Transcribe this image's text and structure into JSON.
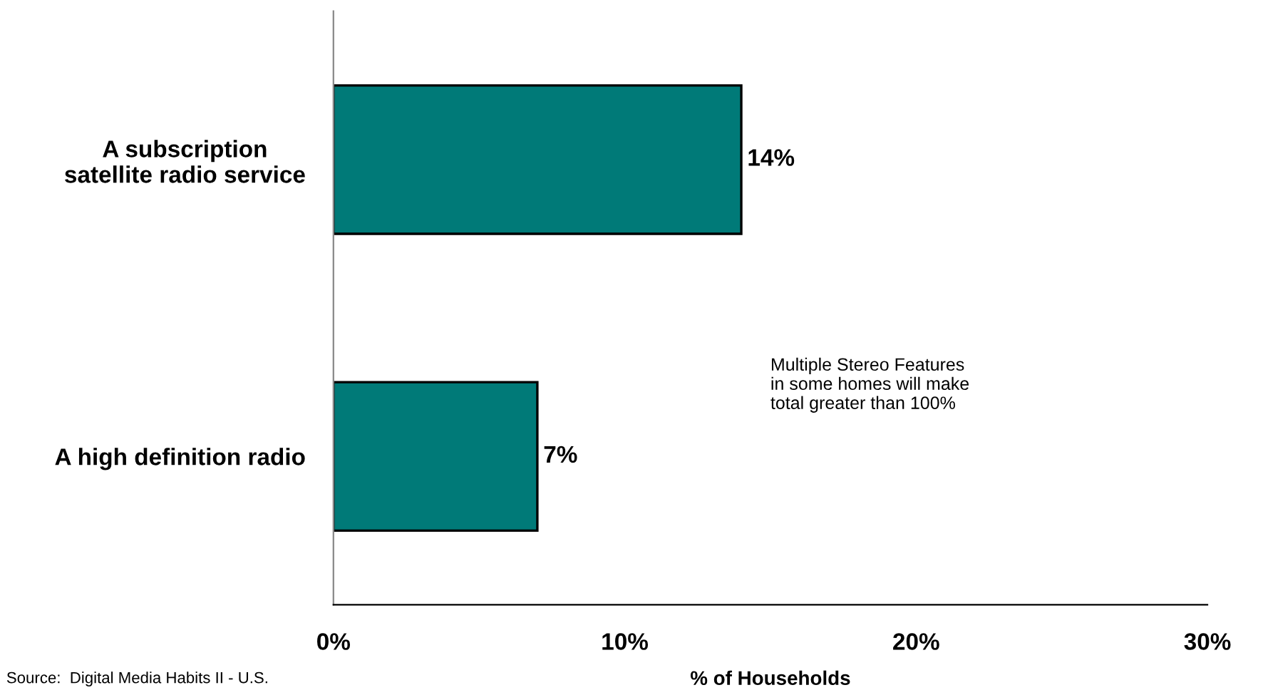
{
  "chart_data": {
    "type": "bar",
    "orientation": "horizontal",
    "xlabel": "% of Households",
    "categories": [
      "A subscription\nsatellite radio service",
      "A high definition radio"
    ],
    "values": [
      14,
      7
    ],
    "value_labels": [
      "14%",
      "7%"
    ],
    "color": "#007a78",
    "xlim": [
      0,
      30
    ],
    "xticks": [
      {
        "value": 0,
        "label": "0%"
      },
      {
        "value": 10,
        "label": "10%"
      },
      {
        "value": 20,
        "label": "20%"
      },
      {
        "value": 30,
        "label": "30%"
      }
    ],
    "grid": false,
    "legend": false,
    "annotations": [
      "Multiple Stereo Features\nin some homes will make\ntotal greater than 100%",
      "Source:  Digital Media Habits II - U.S."
    ]
  }
}
